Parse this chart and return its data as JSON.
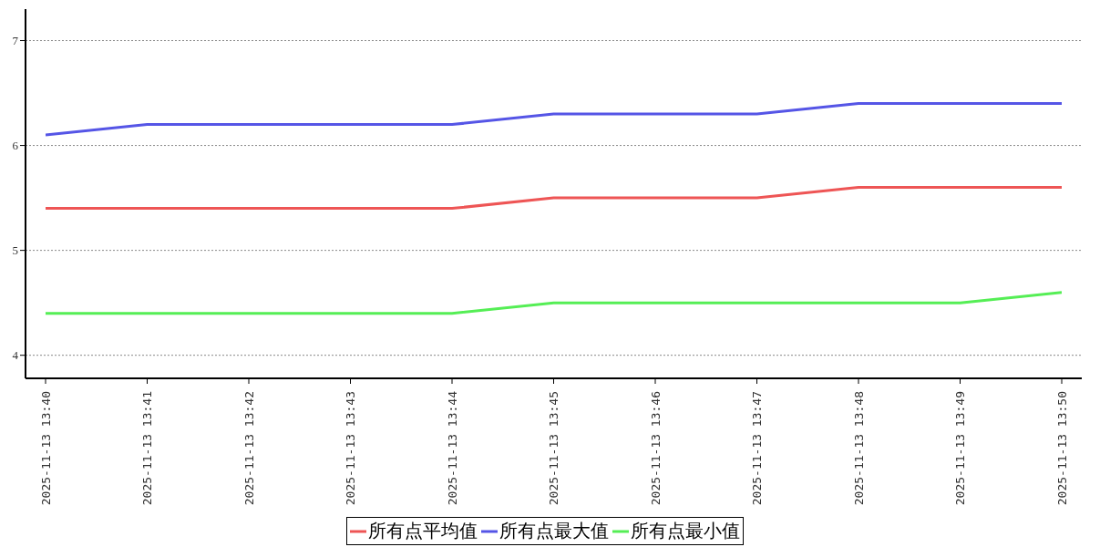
{
  "chart_data": {
    "type": "line",
    "categories": [
      "2025-11-13 13:40",
      "2025-11-13 13:41",
      "2025-11-13 13:42",
      "2025-11-13 13:43",
      "2025-11-13 13:44",
      "2025-11-13 13:45",
      "2025-11-13 13:46",
      "2025-11-13 13:47",
      "2025-11-13 13:48",
      "2025-11-13 13:49",
      "2025-11-13 13:50"
    ],
    "series": [
      {
        "name": "所有点平均值",
        "color": "#ee5555",
        "values": [
          5.4,
          5.4,
          5.4,
          5.4,
          5.4,
          5.5,
          5.5,
          5.5,
          5.6,
          5.6,
          5.6
        ]
      },
      {
        "name": "所有点最大值",
        "color": "#5555e6",
        "values": [
          6.1,
          6.2,
          6.2,
          6.2,
          6.2,
          6.3,
          6.3,
          6.3,
          6.4,
          6.4,
          6.4
        ]
      },
      {
        "name": "所有点最小值",
        "color": "#55ee55",
        "values": [
          4.4,
          4.4,
          4.4,
          4.4,
          4.4,
          4.5,
          4.5,
          4.5,
          4.5,
          4.5,
          4.6
        ]
      }
    ],
    "ylim": [
      3.78,
      7.3
    ],
    "yticks": [
      4,
      5,
      6,
      7
    ],
    "grid": "y",
    "legend": "bottom",
    "marker": "none",
    "line_style": "solid"
  }
}
